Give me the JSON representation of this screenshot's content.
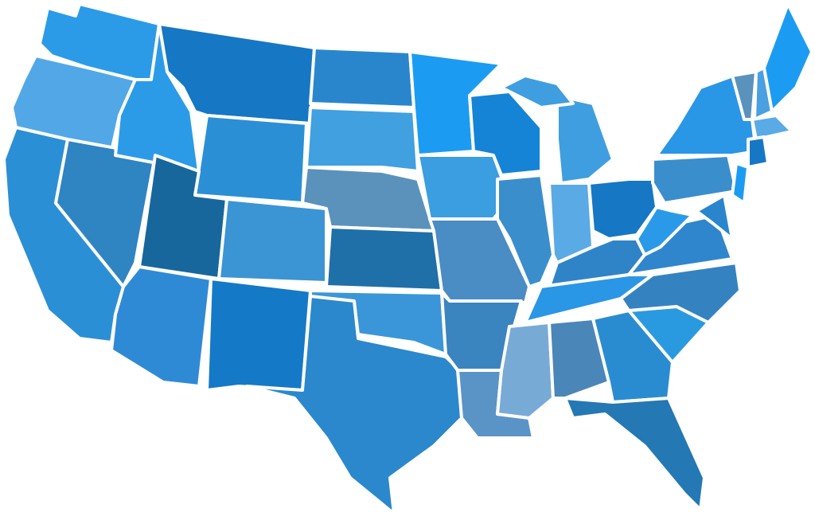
{
  "map": {
    "background": "#ffffff",
    "border_color": "#ffffff",
    "states": [
      {
        "id": "WA",
        "fill": "#2b9be8"
      },
      {
        "id": "OR",
        "fill": "#52a8e6"
      },
      {
        "id": "CA",
        "fill": "#2b8fd6"
      },
      {
        "id": "NV",
        "fill": "#2f84c2"
      },
      {
        "id": "ID",
        "fill": "#2b9be8"
      },
      {
        "id": "MT",
        "fill": "#1677c4"
      },
      {
        "id": "WY",
        "fill": "#2b8fd6"
      },
      {
        "id": "UT",
        "fill": "#17679c"
      },
      {
        "id": "CO",
        "fill": "#3b94d4"
      },
      {
        "id": "AZ",
        "fill": "#2f8ad6"
      },
      {
        "id": "NM",
        "fill": "#1479c6"
      },
      {
        "id": "ND",
        "fill": "#2a86cc"
      },
      {
        "id": "SD",
        "fill": "#40a0e0"
      },
      {
        "id": "NE",
        "fill": "#5a92bc"
      },
      {
        "id": "KS",
        "fill": "#1f6fa8"
      },
      {
        "id": "OK",
        "fill": "#3a96d8"
      },
      {
        "id": "TX",
        "fill": "#2b88cc"
      },
      {
        "id": "MN",
        "fill": "#1b9cf2"
      },
      {
        "id": "IA",
        "fill": "#3a9ee0"
      },
      {
        "id": "MO",
        "fill": "#4a8cc4"
      },
      {
        "id": "AR",
        "fill": "#3a84c0"
      },
      {
        "id": "LA",
        "fill": "#5a94c6"
      },
      {
        "id": "WI",
        "fill": "#1583d6"
      },
      {
        "id": "IL",
        "fill": "#3a8ecc"
      },
      {
        "id": "MI",
        "fill": "#3f9ee0"
      },
      {
        "id": "MI-UP",
        "fill": "#3f9ee0"
      },
      {
        "id": "IN",
        "fill": "#5aaae6"
      },
      {
        "id": "OH",
        "fill": "#1677c4"
      },
      {
        "id": "KY",
        "fill": "#2f84c8"
      },
      {
        "id": "TN",
        "fill": "#2a96e6"
      },
      {
        "id": "MS",
        "fill": "#78aad6"
      },
      {
        "id": "AL",
        "fill": "#4a86b8"
      },
      {
        "id": "GA",
        "fill": "#2a8cd0"
      },
      {
        "id": "FL",
        "fill": "#2478b4"
      },
      {
        "id": "SC",
        "fill": "#2a9ae0"
      },
      {
        "id": "NC",
        "fill": "#3582c0"
      },
      {
        "id": "VA",
        "fill": "#2f86cc"
      },
      {
        "id": "WV",
        "fill": "#2a9ae8"
      },
      {
        "id": "PA",
        "fill": "#3a8ecc"
      },
      {
        "id": "NY",
        "fill": "#2a96e6"
      },
      {
        "id": "VT",
        "fill": "#5a92bc"
      },
      {
        "id": "NH",
        "fill": "#4aa0e0"
      },
      {
        "id": "ME",
        "fill": "#1b9cf2"
      },
      {
        "id": "MA",
        "fill": "#5aaae6"
      },
      {
        "id": "CT",
        "fill": "#1677c4"
      },
      {
        "id": "NJ",
        "fill": "#1b9cf2"
      },
      {
        "id": "MD",
        "fill": "#2a86cc"
      }
    ]
  }
}
